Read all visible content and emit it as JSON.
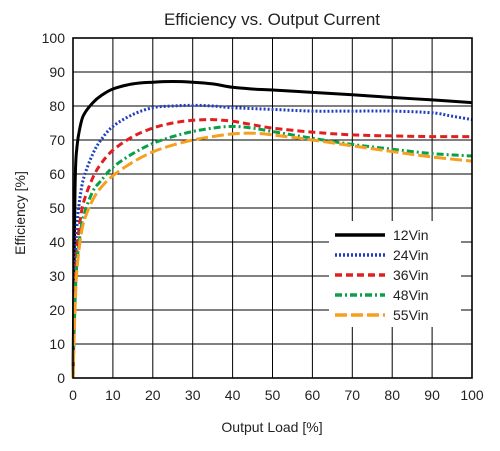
{
  "chart_data": {
    "type": "line",
    "title": "Efficiency vs. Output Current",
    "xlabel": "Output Load [%]",
    "ylabel": "Efficiency [%]",
    "xlim": [
      0,
      100
    ],
    "ylim": [
      0,
      100
    ],
    "x_ticks": [
      0,
      10,
      20,
      30,
      40,
      50,
      60,
      70,
      80,
      90,
      100
    ],
    "y_ticks": [
      0,
      10,
      20,
      30,
      40,
      50,
      60,
      70,
      80,
      90,
      100
    ],
    "grid": true,
    "legend_position": "lower-right",
    "series": [
      {
        "name": "12Vin",
        "color": "#000000",
        "style": "solid",
        "x": [
          0,
          0.5,
          1,
          2,
          3,
          5,
          7,
          10,
          15,
          20,
          25,
          30,
          35,
          40,
          45,
          50,
          60,
          70,
          80,
          90,
          100
        ],
        "y": [
          0,
          55,
          68,
          75,
          78,
          81,
          83,
          85,
          86.5,
          87,
          87.2,
          87,
          86.5,
          85.5,
          85,
          84.7,
          84,
          83.3,
          82.5,
          81.8,
          81
        ]
      },
      {
        "name": "24Vin",
        "color": "#1f3fbf",
        "style": "dotted",
        "x": [
          0,
          0.5,
          1,
          2,
          3,
          5,
          7,
          10,
          15,
          20,
          25,
          30,
          35,
          40,
          50,
          60,
          70,
          80,
          90,
          95,
          100
        ],
        "y": [
          0,
          30,
          45,
          55,
          60,
          66,
          70,
          74,
          77.5,
          79.5,
          80,
          80.2,
          80,
          79.5,
          79,
          78.5,
          78.5,
          78.5,
          78,
          77,
          76
        ]
      },
      {
        "name": "36Vin",
        "color": "#e02020",
        "style": "dashed",
        "x": [
          0,
          0.5,
          1,
          2,
          3,
          5,
          7,
          10,
          15,
          20,
          25,
          30,
          35,
          40,
          45,
          50,
          60,
          70,
          80,
          90,
          100
        ],
        "y": [
          0,
          25,
          38,
          48,
          53,
          59,
          63,
          67,
          71,
          73.5,
          75,
          75.8,
          76,
          75.5,
          74.5,
          73.5,
          72.3,
          71.5,
          71.2,
          71,
          71
        ]
      },
      {
        "name": "48Vin",
        "color": "#0aa04a",
        "style": "dashdot",
        "x": [
          0,
          0.5,
          1,
          2,
          3,
          5,
          7,
          10,
          15,
          20,
          25,
          30,
          35,
          40,
          45,
          50,
          60,
          70,
          80,
          90,
          100
        ],
        "y": [
          0,
          22,
          34,
          44,
          49,
          55,
          58,
          62,
          66,
          69,
          71,
          72.5,
          73.5,
          74,
          73.5,
          72.5,
          70.5,
          68.7,
          67.3,
          66,
          65.3
        ]
      },
      {
        "name": "55Vin",
        "color": "#f5a020",
        "style": "longdash",
        "x": [
          0,
          0.5,
          1,
          2,
          3,
          5,
          7,
          10,
          15,
          20,
          25,
          30,
          35,
          40,
          45,
          50,
          60,
          70,
          80,
          90,
          100
        ],
        "y": [
          0,
          20,
          32,
          42,
          47,
          52.5,
          56,
          59.5,
          63.5,
          66.5,
          68.5,
          70,
          71,
          71.8,
          72,
          71.5,
          70,
          68.3,
          66.6,
          65,
          63.8
        ]
      }
    ]
  }
}
